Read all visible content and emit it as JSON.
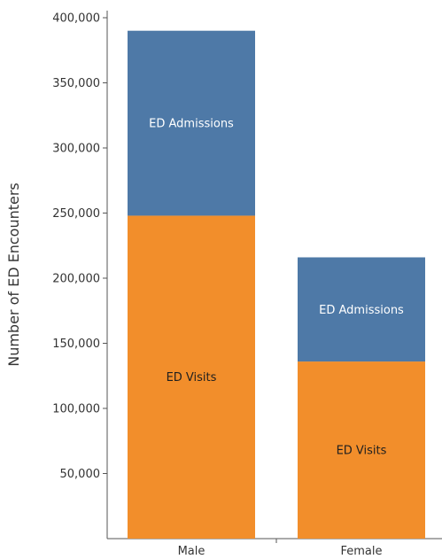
{
  "chart_data": {
    "type": "bar",
    "stacked": true,
    "categories": [
      "Male",
      "Female"
    ],
    "series": [
      {
        "name": "ED Visits",
        "values": [
          248000,
          136000
        ],
        "color": "#f28e2b",
        "label_color": "#1f1f1f"
      },
      {
        "name": "ED Admissions",
        "values": [
          142000,
          80000
        ],
        "color": "#4e79a7",
        "label_color": "#ffffff"
      }
    ],
    "ylabel": "Number of ED Encounters",
    "ylim": [
      0,
      400000
    ],
    "yticks": [
      50000,
      100000,
      150000,
      200000,
      250000,
      300000,
      350000,
      400000
    ],
    "ytick_labels": [
      "50,000",
      "100,000",
      "150,000",
      "200,000",
      "250,000",
      "300,000",
      "350,000",
      "400,000"
    ],
    "grid": false,
    "legend": "none"
  }
}
